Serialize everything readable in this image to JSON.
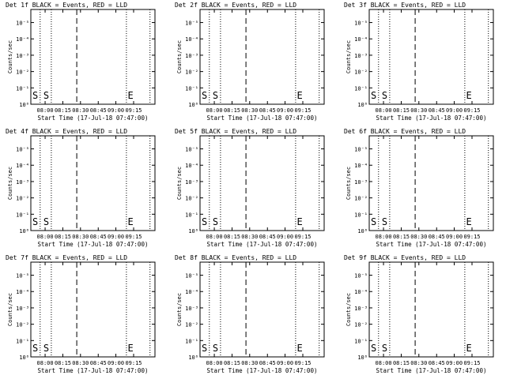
{
  "chart_data": [
    {
      "type": "line",
      "title": "Det 1f BLACK = Events, RED = LLD",
      "xlabel": "Start Time (17-Jul-18 07:47:00)",
      "ylabel": "Counts/sec",
      "x_ticks": [
        "08:00",
        "08:15",
        "08:30",
        "08:45",
        "09:00",
        "09:15"
      ],
      "y_ticks": [
        "10⁰",
        "10⁻¹",
        "10⁻²",
        "10⁻³",
        "10⁻⁴",
        "10⁻⁵"
      ],
      "scale_y": "log",
      "markers": [
        {
          "label": "S"
        },
        {
          "label": "E"
        }
      ],
      "series": []
    },
    {
      "type": "line",
      "title": "Det 2f BLACK = Events, RED = LLD",
      "xlabel": "Start Time (17-Jul-18 07:47:00)",
      "ylabel": "Counts/sec",
      "x_ticks": [
        "08:00",
        "08:15",
        "08:30",
        "08:45",
        "09:00",
        "09:15"
      ],
      "y_ticks": [
        "10⁰",
        "10⁻¹",
        "10⁻²",
        "10⁻³",
        "10⁻⁴",
        "10⁻⁵"
      ],
      "scale_y": "log",
      "markers": [
        {
          "label": "S"
        },
        {
          "label": "E"
        }
      ],
      "series": []
    },
    {
      "type": "line",
      "title": "Det 3f BLACK = Events, RED = LLD",
      "xlabel": "Start Time (17-Jul-18 07:47:00)",
      "ylabel": "Counts/sec",
      "x_ticks": [
        "08:00",
        "08:15",
        "08:30",
        "08:45",
        "09:00",
        "09:15"
      ],
      "y_ticks": [
        "10⁰",
        "10⁻¹",
        "10⁻²",
        "10⁻³",
        "10⁻⁴",
        "10⁻⁵"
      ],
      "scale_y": "log",
      "markers": [
        {
          "label": "S"
        },
        {
          "label": "E"
        }
      ],
      "series": []
    },
    {
      "type": "line",
      "title": "Det 4f BLACK = Events, RED = LLD",
      "xlabel": "Start Time (17-Jul-18 07:47:00)",
      "ylabel": "Counts/sec",
      "x_ticks": [
        "08:00",
        "08:15",
        "08:30",
        "08:45",
        "09:00",
        "09:15"
      ],
      "y_ticks": [
        "10⁰",
        "10⁻¹",
        "10⁻²",
        "10⁻³",
        "10⁻⁴",
        "10⁻⁵"
      ],
      "scale_y": "log",
      "markers": [
        {
          "label": "S"
        },
        {
          "label": "E"
        }
      ],
      "series": []
    },
    {
      "type": "line",
      "title": "Det 5f BLACK = Events, RED = LLD",
      "xlabel": "Start Time (17-Jul-18 07:47:00)",
      "ylabel": "Counts/sec",
      "x_ticks": [
        "08:00",
        "08:15",
        "08:30",
        "08:45",
        "09:00",
        "09:15"
      ],
      "y_ticks": [
        "10⁰",
        "10⁻¹",
        "10⁻²",
        "10⁻³",
        "10⁻⁴",
        "10⁻⁵"
      ],
      "scale_y": "log",
      "markers": [
        {
          "label": "S"
        },
        {
          "label": "E"
        }
      ],
      "series": []
    },
    {
      "type": "line",
      "title": "Det 6f BLACK = Events, RED = LLD",
      "xlabel": "Start Time (17-Jul-18 07:47:00)",
      "ylabel": "Counts/sec",
      "x_ticks": [
        "08:00",
        "08:15",
        "08:30",
        "08:45",
        "09:00",
        "09:15"
      ],
      "y_ticks": [
        "10⁰",
        "10⁻¹",
        "10⁻²",
        "10⁻³",
        "10⁻⁴",
        "10⁻⁵"
      ],
      "scale_y": "log",
      "markers": [
        {
          "label": "S"
        },
        {
          "label": "E"
        }
      ],
      "series": []
    },
    {
      "type": "line",
      "title": "Det 7f BLACK = Events, RED = LLD",
      "xlabel": "Start Time (17-Jul-18 07:47:00)",
      "ylabel": "Counts/sec",
      "x_ticks": [
        "08:00",
        "08:15",
        "08:30",
        "08:45",
        "09:00",
        "09:15"
      ],
      "y_ticks": [
        "10⁰",
        "10⁻¹",
        "10⁻²",
        "10⁻³",
        "10⁻⁴",
        "10⁻⁵"
      ],
      "scale_y": "log",
      "markers": [
        {
          "label": "S"
        },
        {
          "label": "E"
        }
      ],
      "series": []
    },
    {
      "type": "line",
      "title": "Det 8f BLACK = Events, RED = LLD",
      "xlabel": "Start Time (17-Jul-18 07:47:00)",
      "ylabel": "Counts/sec",
      "x_ticks": [
        "08:00",
        "08:15",
        "08:30",
        "08:45",
        "09:00",
        "09:15"
      ],
      "y_ticks": [
        "10⁰",
        "10⁻¹",
        "10⁻²",
        "10⁻³",
        "10⁻⁴",
        "10⁻⁵"
      ],
      "scale_y": "log",
      "markers": [
        {
          "label": "S"
        },
        {
          "label": "E"
        }
      ],
      "series": []
    },
    {
      "type": "line",
      "title": "Det 9f BLACK = Events, RED = LLD",
      "xlabel": "Start Time (17-Jul-18 07:47:00)",
      "ylabel": "Counts/sec",
      "x_ticks": [
        "08:00",
        "08:15",
        "08:30",
        "08:45",
        "09:00",
        "09:15"
      ],
      "y_ticks": [
        "10⁰",
        "10⁻¹",
        "10⁻²",
        "10⁻³",
        "10⁻⁴",
        "10⁻⁵"
      ],
      "scale_y": "log",
      "markers": [
        {
          "label": "S"
        },
        {
          "label": "E"
        }
      ],
      "series": []
    }
  ]
}
